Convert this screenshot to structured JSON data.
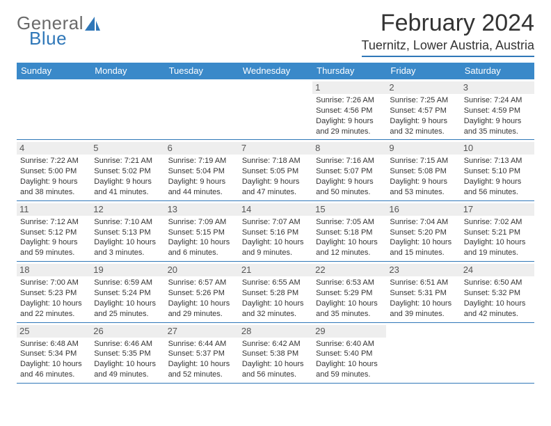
{
  "logo": {
    "word1": "General",
    "word2": "Blue"
  },
  "title": "February 2024",
  "location": "Tuernitz, Lower Austria, Austria",
  "colors": {
    "header_bg": "#3a89c9",
    "accent": "#2f77b8",
    "daynum_bg": "#eeeeee",
    "text": "#333333",
    "logo_gray": "#6a6a6a"
  },
  "days_of_week": [
    "Sunday",
    "Monday",
    "Tuesday",
    "Wednesday",
    "Thursday",
    "Friday",
    "Saturday"
  ],
  "weeks": [
    [
      null,
      null,
      null,
      null,
      {
        "n": "1",
        "sr": "Sunrise: 7:26 AM",
        "ss": "Sunset: 4:56 PM",
        "d1": "Daylight: 9 hours",
        "d2": "and 29 minutes."
      },
      {
        "n": "2",
        "sr": "Sunrise: 7:25 AM",
        "ss": "Sunset: 4:57 PM",
        "d1": "Daylight: 9 hours",
        "d2": "and 32 minutes."
      },
      {
        "n": "3",
        "sr": "Sunrise: 7:24 AM",
        "ss": "Sunset: 4:59 PM",
        "d1": "Daylight: 9 hours",
        "d2": "and 35 minutes."
      }
    ],
    [
      {
        "n": "4",
        "sr": "Sunrise: 7:22 AM",
        "ss": "Sunset: 5:00 PM",
        "d1": "Daylight: 9 hours",
        "d2": "and 38 minutes."
      },
      {
        "n": "5",
        "sr": "Sunrise: 7:21 AM",
        "ss": "Sunset: 5:02 PM",
        "d1": "Daylight: 9 hours",
        "d2": "and 41 minutes."
      },
      {
        "n": "6",
        "sr": "Sunrise: 7:19 AM",
        "ss": "Sunset: 5:04 PM",
        "d1": "Daylight: 9 hours",
        "d2": "and 44 minutes."
      },
      {
        "n": "7",
        "sr": "Sunrise: 7:18 AM",
        "ss": "Sunset: 5:05 PM",
        "d1": "Daylight: 9 hours",
        "d2": "and 47 minutes."
      },
      {
        "n": "8",
        "sr": "Sunrise: 7:16 AM",
        "ss": "Sunset: 5:07 PM",
        "d1": "Daylight: 9 hours",
        "d2": "and 50 minutes."
      },
      {
        "n": "9",
        "sr": "Sunrise: 7:15 AM",
        "ss": "Sunset: 5:08 PM",
        "d1": "Daylight: 9 hours",
        "d2": "and 53 minutes."
      },
      {
        "n": "10",
        "sr": "Sunrise: 7:13 AM",
        "ss": "Sunset: 5:10 PM",
        "d1": "Daylight: 9 hours",
        "d2": "and 56 minutes."
      }
    ],
    [
      {
        "n": "11",
        "sr": "Sunrise: 7:12 AM",
        "ss": "Sunset: 5:12 PM",
        "d1": "Daylight: 9 hours",
        "d2": "and 59 minutes."
      },
      {
        "n": "12",
        "sr": "Sunrise: 7:10 AM",
        "ss": "Sunset: 5:13 PM",
        "d1": "Daylight: 10 hours",
        "d2": "and 3 minutes."
      },
      {
        "n": "13",
        "sr": "Sunrise: 7:09 AM",
        "ss": "Sunset: 5:15 PM",
        "d1": "Daylight: 10 hours",
        "d2": "and 6 minutes."
      },
      {
        "n": "14",
        "sr": "Sunrise: 7:07 AM",
        "ss": "Sunset: 5:16 PM",
        "d1": "Daylight: 10 hours",
        "d2": "and 9 minutes."
      },
      {
        "n": "15",
        "sr": "Sunrise: 7:05 AM",
        "ss": "Sunset: 5:18 PM",
        "d1": "Daylight: 10 hours",
        "d2": "and 12 minutes."
      },
      {
        "n": "16",
        "sr": "Sunrise: 7:04 AM",
        "ss": "Sunset: 5:20 PM",
        "d1": "Daylight: 10 hours",
        "d2": "and 15 minutes."
      },
      {
        "n": "17",
        "sr": "Sunrise: 7:02 AM",
        "ss": "Sunset: 5:21 PM",
        "d1": "Daylight: 10 hours",
        "d2": "and 19 minutes."
      }
    ],
    [
      {
        "n": "18",
        "sr": "Sunrise: 7:00 AM",
        "ss": "Sunset: 5:23 PM",
        "d1": "Daylight: 10 hours",
        "d2": "and 22 minutes."
      },
      {
        "n": "19",
        "sr": "Sunrise: 6:59 AM",
        "ss": "Sunset: 5:24 PM",
        "d1": "Daylight: 10 hours",
        "d2": "and 25 minutes."
      },
      {
        "n": "20",
        "sr": "Sunrise: 6:57 AM",
        "ss": "Sunset: 5:26 PM",
        "d1": "Daylight: 10 hours",
        "d2": "and 29 minutes."
      },
      {
        "n": "21",
        "sr": "Sunrise: 6:55 AM",
        "ss": "Sunset: 5:28 PM",
        "d1": "Daylight: 10 hours",
        "d2": "and 32 minutes."
      },
      {
        "n": "22",
        "sr": "Sunrise: 6:53 AM",
        "ss": "Sunset: 5:29 PM",
        "d1": "Daylight: 10 hours",
        "d2": "and 35 minutes."
      },
      {
        "n": "23",
        "sr": "Sunrise: 6:51 AM",
        "ss": "Sunset: 5:31 PM",
        "d1": "Daylight: 10 hours",
        "d2": "and 39 minutes."
      },
      {
        "n": "24",
        "sr": "Sunrise: 6:50 AM",
        "ss": "Sunset: 5:32 PM",
        "d1": "Daylight: 10 hours",
        "d2": "and 42 minutes."
      }
    ],
    [
      {
        "n": "25",
        "sr": "Sunrise: 6:48 AM",
        "ss": "Sunset: 5:34 PM",
        "d1": "Daylight: 10 hours",
        "d2": "and 46 minutes."
      },
      {
        "n": "26",
        "sr": "Sunrise: 6:46 AM",
        "ss": "Sunset: 5:35 PM",
        "d1": "Daylight: 10 hours",
        "d2": "and 49 minutes."
      },
      {
        "n": "27",
        "sr": "Sunrise: 6:44 AM",
        "ss": "Sunset: 5:37 PM",
        "d1": "Daylight: 10 hours",
        "d2": "and 52 minutes."
      },
      {
        "n": "28",
        "sr": "Sunrise: 6:42 AM",
        "ss": "Sunset: 5:38 PM",
        "d1": "Daylight: 10 hours",
        "d2": "and 56 minutes."
      },
      {
        "n": "29",
        "sr": "Sunrise: 6:40 AM",
        "ss": "Sunset: 5:40 PM",
        "d1": "Daylight: 10 hours",
        "d2": "and 59 minutes."
      },
      null,
      null
    ]
  ]
}
